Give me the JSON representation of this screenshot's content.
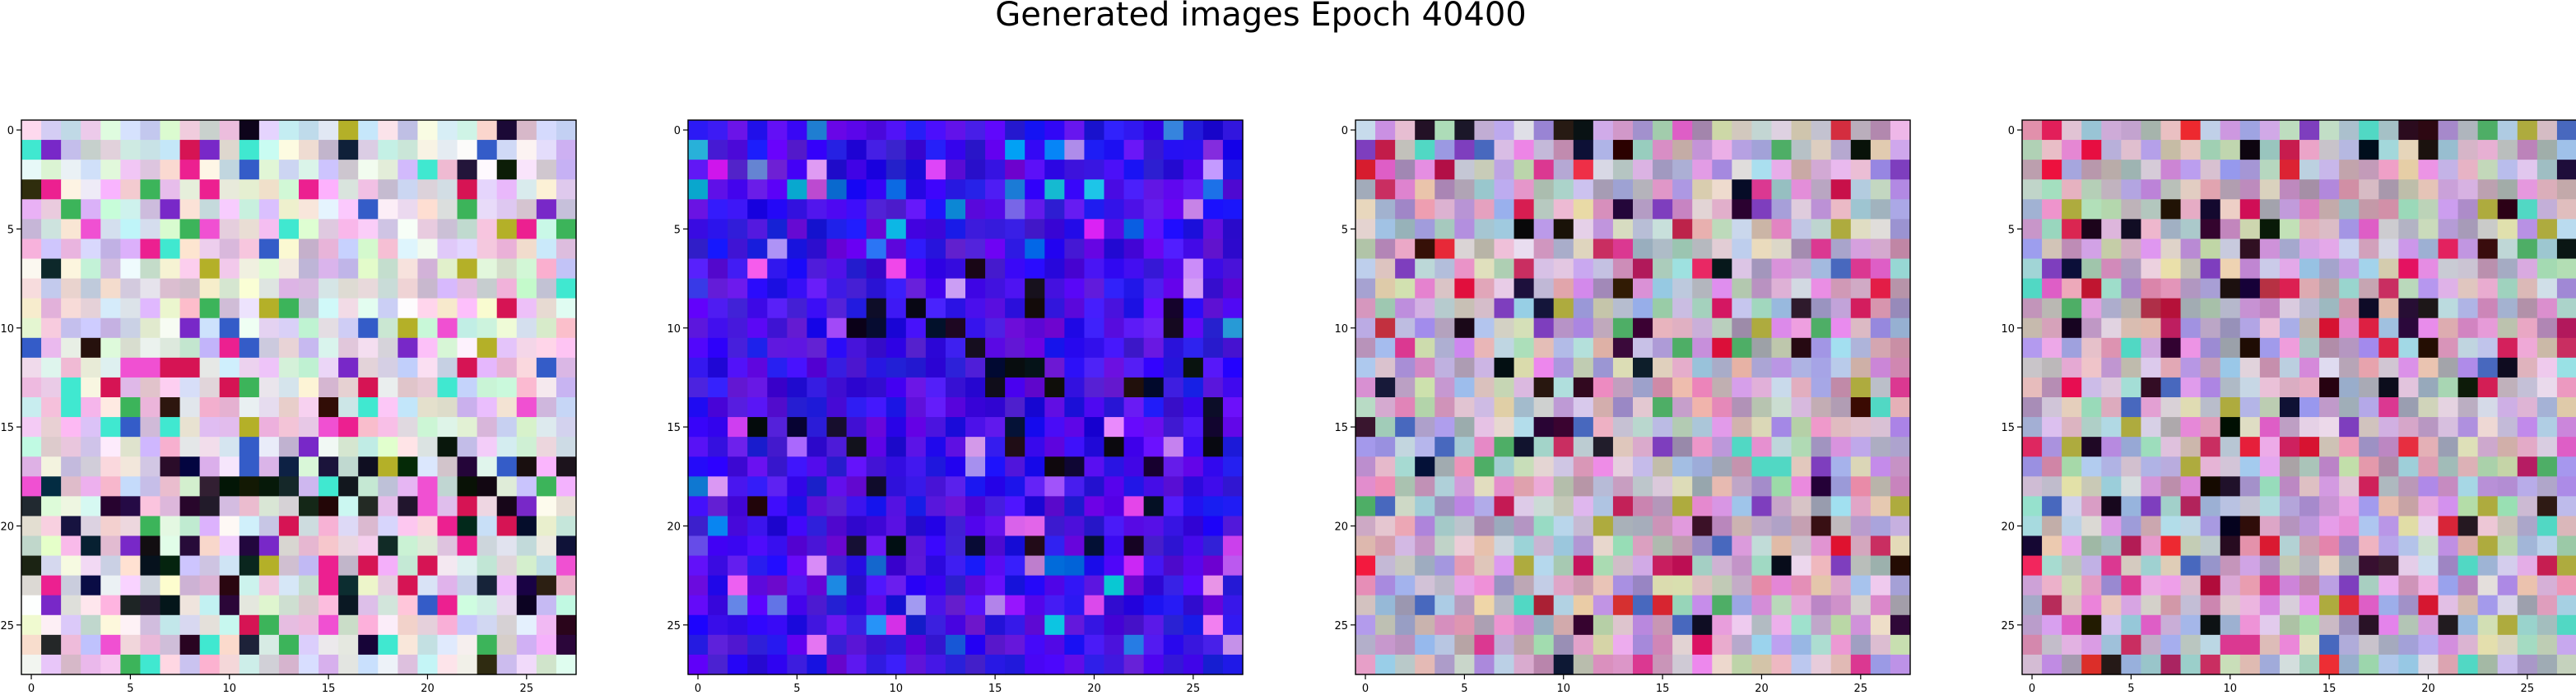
{
  "title": "Generated images Epoch 40400",
  "chart_data": [
    {
      "type": "heatmap",
      "name": "generated-image-1",
      "width": 28,
      "height": 28,
      "xticks": [
        0,
        5,
        10,
        15,
        20,
        25
      ],
      "yticks": [
        0,
        5,
        10,
        15,
        20,
        25
      ],
      "xlim": [
        -0.5,
        27.5
      ],
      "ylim": [
        27.5,
        -0.5
      ],
      "palette": "light-pastel-noise",
      "note": "28x28 generated RGB image; mostly light pastel pixels with dark/saturated pixels concentrated around rows 17-24"
    },
    {
      "type": "heatmap",
      "name": "generated-image-2",
      "width": 28,
      "height": 28,
      "xticks": [
        0,
        5,
        10,
        15,
        20,
        25
      ],
      "yticks": [
        0,
        5,
        10,
        15,
        20,
        25
      ],
      "xlim": [
        -0.5,
        27.5
      ],
      "ylim": [
        27.5,
        -0.5
      ],
      "palette": "blue-dominant-noise",
      "note": "28x28 generated RGB image; predominantly saturated blue with dark pixels in the center region"
    },
    {
      "type": "heatmap",
      "name": "generated-image-3",
      "width": 28,
      "height": 28,
      "xticks": [
        0,
        5,
        10,
        15,
        20,
        25
      ],
      "yticks": [
        0,
        5,
        10,
        15,
        20,
        25
      ],
      "xlim": [
        -0.5,
        27.5
      ],
      "ylim": [
        27.5,
        -0.5
      ],
      "palette": "muted-pastel-noise",
      "note": "28x28 generated RGB image; muted pastel pixels with scattered dark and red pixels"
    },
    {
      "type": "heatmap",
      "name": "generated-image-4",
      "width": 28,
      "height": 28,
      "xticks": [
        0,
        5,
        10,
        15,
        20,
        25
      ],
      "yticks": [
        0,
        5,
        10,
        15,
        20,
        25
      ],
      "xlim": [
        -0.5,
        27.5
      ],
      "ylim": [
        27.5,
        -0.5
      ],
      "palette": "muted-pastel-noise",
      "note": "28x28 generated RGB image; muted pastel pixels with a darker vertical band around column 10"
    }
  ]
}
